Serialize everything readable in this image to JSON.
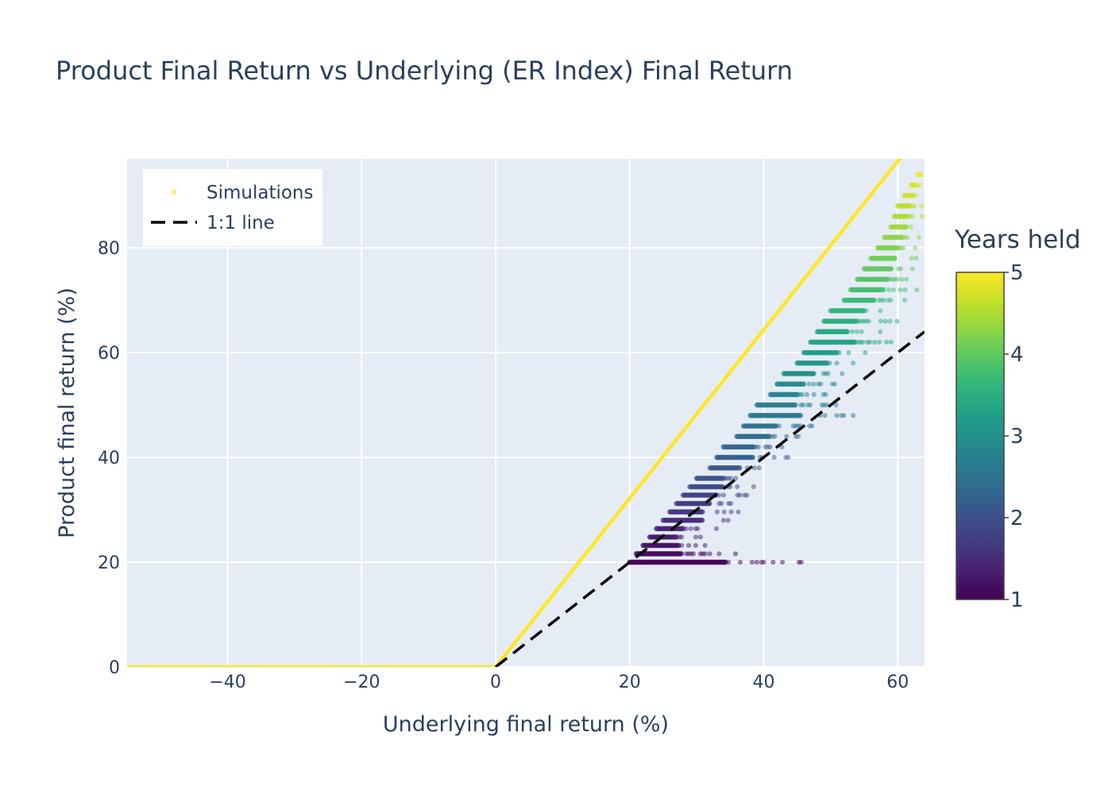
{
  "chart_data": {
    "type": "scatter",
    "title": "Product Final Return vs Underlying (ER Index) Final Return",
    "xlabel": "Underlying final return (%)",
    "ylabel": "Product final return (%)",
    "xlim": [
      -55,
      64
    ],
    "ylim": [
      0,
      97
    ],
    "x_ticks": [
      -40,
      -20,
      0,
      20,
      40,
      60
    ],
    "y_ticks": [
      0,
      20,
      40,
      60,
      80
    ],
    "x_tick_labels": [
      "−40",
      "−20",
      "0",
      "20",
      "40",
      "60"
    ],
    "y_tick_labels": [
      "0",
      "20",
      "40",
      "60",
      "80"
    ],
    "grid": true,
    "legend_position": "top-left",
    "legend": [
      {
        "name": "Simulations",
        "marker": "dot"
      },
      {
        "name": "1:1 line",
        "marker": "dash"
      }
    ],
    "colorbar": {
      "title": "Years held",
      "range": [
        1,
        5
      ],
      "ticks": [
        "1",
        "2",
        "3",
        "4",
        "5"
      ],
      "colorscale": [
        "#440154",
        "#482878",
        "#3e4989",
        "#31688e",
        "#26828e",
        "#1f9e89",
        "#35b779",
        "#6ece58",
        "#b5de2b",
        "#fde725"
      ]
    },
    "payoff_line": {
      "color": "#fde725",
      "points": [
        [
          -55,
          0
        ],
        [
          0,
          0
        ],
        [
          64,
          103
        ]
      ]
    },
    "one_to_one_line": {
      "color": "#000000",
      "style": "dash",
      "points": [
        [
          0,
          0
        ],
        [
          64,
          64
        ]
      ]
    },
    "simulation_bands": [
      {
        "y": 20,
        "x_min": 20,
        "x_max": 52,
        "years": 1.0
      },
      {
        "y": 21.6,
        "x_min": 21,
        "x_max": 36,
        "years": 1.1
      },
      {
        "y": 23.2,
        "x_min": 22,
        "x_max": 34,
        "years": 1.2
      },
      {
        "y": 24.8,
        "x_min": 23,
        "x_max": 32,
        "years": 1.3
      },
      {
        "y": 26.4,
        "x_min": 24,
        "x_max": 33,
        "years": 1.4
      },
      {
        "y": 28,
        "x_min": 25,
        "x_max": 38,
        "years": 1.5
      },
      {
        "y": 29.6,
        "x_min": 26,
        "x_max": 37,
        "years": 1.6
      },
      {
        "y": 31.2,
        "x_min": 27,
        "x_max": 38,
        "years": 1.7
      },
      {
        "y": 32.8,
        "x_min": 28,
        "x_max": 39,
        "years": 1.8
      },
      {
        "y": 34.4,
        "x_min": 29,
        "x_max": 40,
        "years": 1.9
      },
      {
        "y": 36,
        "x_min": 30,
        "x_max": 39,
        "years": 2.0
      },
      {
        "y": 38,
        "x_min": 32,
        "x_max": 42,
        "years": 2.1
      },
      {
        "y": 40,
        "x_min": 33,
        "x_max": 45,
        "years": 2.2
      },
      {
        "y": 42,
        "x_min": 34,
        "x_max": 44,
        "years": 2.3
      },
      {
        "y": 44,
        "x_min": 36,
        "x_max": 47,
        "years": 2.4
      },
      {
        "y": 46,
        "x_min": 37,
        "x_max": 48,
        "years": 2.5
      },
      {
        "y": 48,
        "x_min": 38,
        "x_max": 55,
        "years": 2.6
      },
      {
        "y": 50,
        "x_min": 39,
        "x_max": 52,
        "years": 2.7
      },
      {
        "y": 52,
        "x_min": 41,
        "x_max": 50,
        "years": 2.8
      },
      {
        "y": 54,
        "x_min": 42,
        "x_max": 51,
        "years": 2.9
      },
      {
        "y": 56,
        "x_min": 43,
        "x_max": 53,
        "years": 3.0
      },
      {
        "y": 58,
        "x_min": 45,
        "x_max": 55,
        "years": 3.1
      },
      {
        "y": 60,
        "x_min": 46,
        "x_max": 57,
        "years": 3.2
      },
      {
        "y": 62,
        "x_min": 47,
        "x_max": 62,
        "years": 3.3
      },
      {
        "y": 64,
        "x_min": 48,
        "x_max": 58,
        "years": 3.4
      },
      {
        "y": 66,
        "x_min": 49,
        "x_max": 60,
        "years": 3.5
      },
      {
        "y": 68,
        "x_min": 50,
        "x_max": 61,
        "years": 3.6
      },
      {
        "y": 70,
        "x_min": 52,
        "x_max": 62,
        "years": 3.7
      },
      {
        "y": 72,
        "x_min": 53,
        "x_max": 64,
        "years": 3.8
      },
      {
        "y": 74,
        "x_min": 54,
        "x_max": 64,
        "years": 3.9
      },
      {
        "y": 76,
        "x_min": 55,
        "x_max": 64,
        "years": 4.0
      },
      {
        "y": 78,
        "x_min": 56,
        "x_max": 64,
        "years": 4.1
      },
      {
        "y": 80,
        "x_min": 57,
        "x_max": 64,
        "years": 4.2
      },
      {
        "y": 82,
        "x_min": 58,
        "x_max": 64,
        "years": 4.3
      },
      {
        "y": 84,
        "x_min": 59,
        "x_max": 64,
        "years": 4.4
      },
      {
        "y": 86,
        "x_min": 59.5,
        "x_max": 64,
        "years": 4.5
      },
      {
        "y": 88,
        "x_min": 60,
        "x_max": 64,
        "years": 4.6
      },
      {
        "y": 90,
        "x_min": 61,
        "x_max": 64,
        "years": 4.7
      },
      {
        "y": 92,
        "x_min": 62,
        "x_max": 64,
        "years": 4.8
      },
      {
        "y": 94,
        "x_min": 63,
        "x_max": 64,
        "years": 4.9
      }
    ]
  }
}
